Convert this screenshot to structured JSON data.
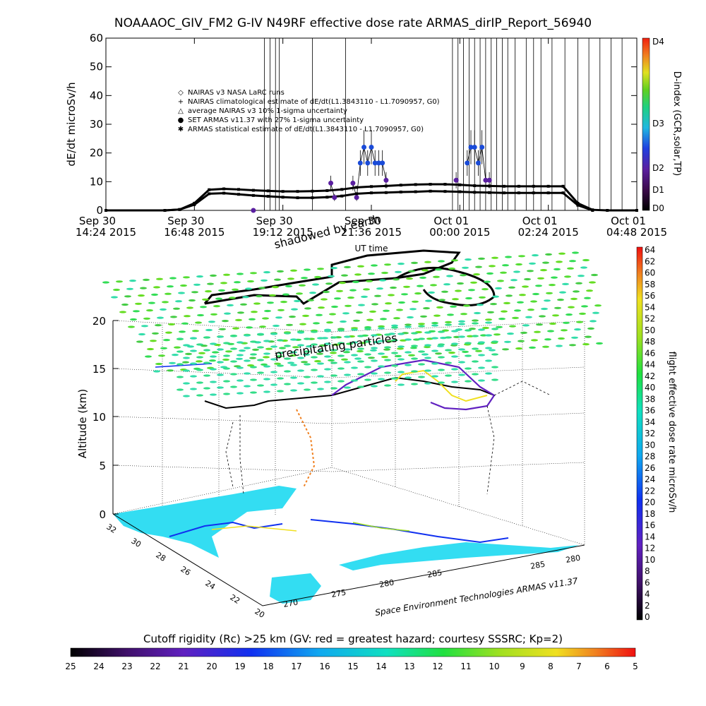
{
  "title": "NOAAAOC_GIV_FM2 G-IV    N49RF   effective dose rate ARMAS_dirIP_Report_56940",
  "footer": "Space Environment Technologies ARMAS v11.37",
  "chart_data": [
    {
      "type": "line",
      "panel": "time-series",
      "ylabel": "dE/dt microSv/h",
      "xlabel": "UT time",
      "ylim": [
        0,
        60
      ],
      "y_ticks": [
        "0",
        "10",
        "20",
        "30",
        "40",
        "50",
        "60"
      ],
      "x_ticks": [
        {
          "line1": "Sep 30",
          "line2": "14:24 2015"
        },
        {
          "line1": "Sep 30",
          "line2": "16:48 2015"
        },
        {
          "line1": "Sep 30",
          "line2": "19:12 2015"
        },
        {
          "line1": "Sep 30",
          "line2": "21:36 2015"
        },
        {
          "line1": "Oct 01",
          "line2": "00:00 2015"
        },
        {
          "line1": "Oct 01",
          "line2": "02:24 2015"
        },
        {
          "line1": "Oct 01",
          "line2": "04:48 2015"
        }
      ],
      "legend": [
        {
          "symbol": "◇",
          "label": "NAIRAS v3 NASA LaRC runs"
        },
        {
          "symbol": "+",
          "label": "NAIRAS climatological estimate of dE/dt(L1.3843110 - L1.7090957, G0)"
        },
        {
          "symbol": "△",
          "label": "average NAIRAS v3 10% 1-sigma uncertainty"
        },
        {
          "symbol": "●",
          "label": "SET ARMAS v11.37 with 27% 1-sigma uncertainty"
        },
        {
          "symbol": "✱",
          "label": "ARMAS statistical estimate of dE/dt(L1.3843110 - L1.7090957, G0)"
        }
      ],
      "series": [
        {
          "name": "NAIRAS climatological estimate",
          "hours": [
            0,
            1.6,
            2.0,
            2.4,
            2.8,
            3.2,
            3.6,
            4.0,
            4.4,
            4.8,
            5.2,
            5.6,
            6.0,
            6.4,
            6.8,
            7.2,
            7.6,
            8.0,
            8.4,
            8.8,
            9.2,
            9.6,
            10.0,
            10.4,
            10.8,
            11.2,
            11.6,
            12.0,
            12.4,
            12.8,
            13.2,
            13.6,
            14.4
          ],
          "values": [
            0,
            0,
            0.3,
            2.5,
            7.2,
            7.5,
            7.3,
            7.0,
            6.8,
            6.6,
            6.6,
            6.7,
            6.9,
            7.3,
            8.0,
            8.3,
            8.5,
            8.8,
            9.0,
            9.1,
            9.1,
            8.9,
            8.6,
            8.5,
            8.4,
            8.4,
            8.4,
            8.4,
            8.4,
            2.5,
            0.2,
            0,
            0
          ]
        },
        {
          "name": "ARMAS statistical estimate",
          "hours": [
            1.6,
            2.0,
            2.4,
            2.8,
            3.2,
            3.6,
            4.0,
            4.4,
            4.8,
            5.2,
            5.6,
            6.0,
            6.4,
            6.8,
            7.2,
            7.6,
            8.0,
            8.4,
            8.8,
            9.2,
            9.6,
            10.0,
            10.4,
            10.8,
            11.2,
            11.6,
            12.0,
            12.4,
            12.8,
            13.2
          ],
          "values": [
            0,
            0.3,
            2.0,
            5.8,
            6.0,
            5.6,
            5.2,
            4.9,
            4.6,
            4.4,
            4.4,
            4.6,
            5.0,
            5.8,
            6.1,
            6.2,
            6.4,
            6.5,
            6.7,
            6.6,
            6.5,
            6.3,
            6.2,
            6.1,
            6.1,
            6.1,
            6.1,
            6.1,
            1.8,
            0
          ]
        },
        {
          "name": "SET ARMAS v11.37",
          "hours": [
            4.0,
            6.1,
            6.2,
            6.7,
            6.8,
            6.9,
            7.0,
            7.1,
            7.2,
            7.3,
            7.4,
            7.5,
            7.6,
            9.5,
            9.8,
            9.9,
            10.0,
            10.1,
            10.2,
            10.3,
            10.4
          ],
          "values": [
            0,
            9.5,
            4.5,
            9.5,
            4.5,
            16.5,
            22,
            16.5,
            22,
            16.5,
            16.5,
            16.5,
            10.5,
            10.5,
            16.5,
            22,
            22,
            16.5,
            22,
            10.5,
            10.5
          ]
        },
        {
          "name": "vertical markers",
          "hours": [
            4.3,
            4.45,
            4.6,
            4.7,
            5.6,
            6.5,
            9.4,
            9.55,
            9.7,
            9.85,
            10.0,
            10.15,
            10.3,
            10.45,
            10.6,
            10.75,
            10.9,
            11.1,
            11.4,
            11.6,
            11.8,
            12.1,
            12.45,
            12.8,
            13.1,
            13.4,
            13.7,
            14.0
          ]
        }
      ],
      "colorbar": {
        "ticks": [
          "D0",
          "D1",
          "D2",
          "D3",
          "D4"
        ],
        "label": "D-index (GCR,solar,TP)"
      }
    },
    {
      "type": "scatter",
      "panel": "3d-altitude",
      "zlabel": "Altitude (km)",
      "z_ticks": [
        "0",
        "5",
        "10",
        "15",
        "20"
      ],
      "lat_ticks": [
        "32",
        "30",
        "28",
        "26",
        "24",
        "22",
        "20"
      ],
      "lon_ticks_front": [
        "270",
        "275",
        "280",
        "285"
      ],
      "lon_ticks_side": [
        "285",
        "280"
      ],
      "annotations": [
        "shadowed by earth",
        "precipitating particles"
      ],
      "right_colorbar": {
        "ticks": [
          "0",
          "2",
          "4",
          "6",
          "8",
          "10",
          "12",
          "14",
          "16",
          "18",
          "20",
          "22",
          "24",
          "26",
          "28",
          "30",
          "32",
          "34",
          "36",
          "38",
          "40",
          "42",
          "44",
          "46",
          "48",
          "50",
          "52",
          "54",
          "56",
          "58",
          "60",
          "62",
          "64"
        ],
        "label": "flight effective dose rate microSv/h"
      },
      "bottom_colorbar": {
        "title": "Cutoff rigidity (Rc) >25 km (GV: red = greatest hazard; courtesy SSSRC; Kp=2)",
        "ticks": [
          "25",
          "24",
          "23",
          "22",
          "21",
          "20",
          "19",
          "18",
          "17",
          "16",
          "15",
          "14",
          "13",
          "12",
          "11",
          "10",
          "9",
          "8",
          "7",
          "6",
          "5"
        ]
      }
    }
  ]
}
